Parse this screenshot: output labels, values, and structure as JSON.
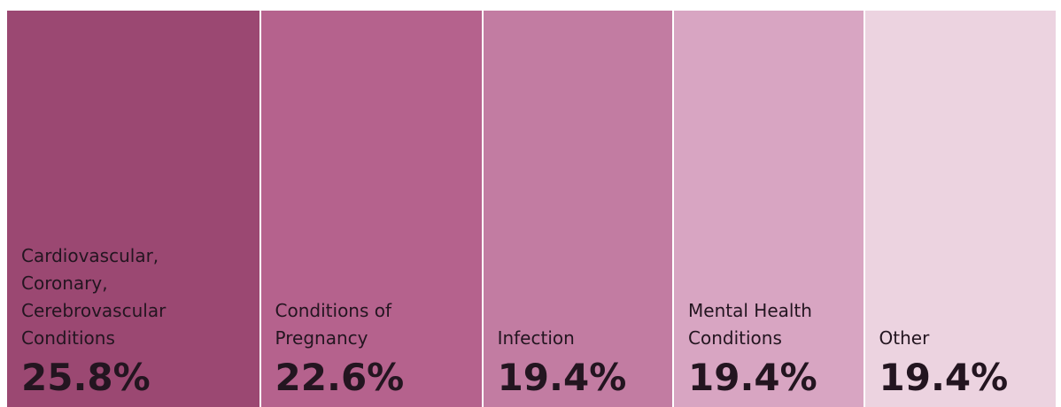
{
  "chart_data": {
    "type": "treemap",
    "categories": [
      "Cardiovascular, Coronary, Cerebrovascular Conditions",
      "Conditions of Pregnancy",
      "Infection",
      "Mental Health Conditions",
      "Other"
    ],
    "values": [
      25.8,
      22.6,
      19.4,
      19.4,
      19.4
    ],
    "value_labels": [
      "25.8%",
      "22.6%",
      "19.4%",
      "19.4%",
      "19.4%"
    ],
    "colors": [
      "#9b4872",
      "#b5628d",
      "#c27ca2",
      "#d8a5c2",
      "#ecd3e0"
    ]
  }
}
